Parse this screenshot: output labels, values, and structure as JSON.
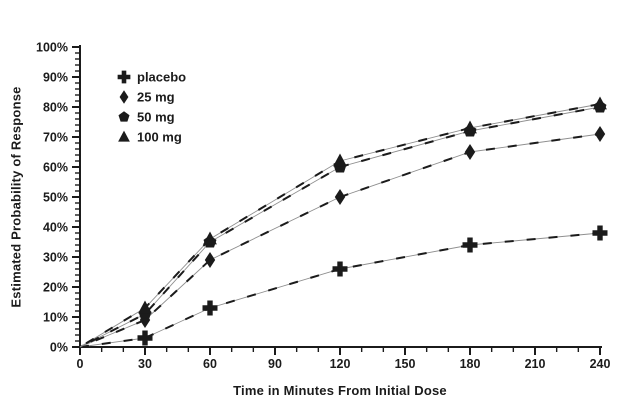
{
  "figure": {
    "background": "#ffffff",
    "ink_color": "#1b1b1b",
    "line_shadow_color": "#8f8f8f"
  },
  "chart_data": {
    "type": "line",
    "title": "",
    "xlabel": "Time in Minutes From Initial Dose",
    "ylabel": "Estimated Probability of Response",
    "x": [
      0,
      30,
      60,
      120,
      180,
      240
    ],
    "series": [
      {
        "name": "placebo",
        "marker": "plus-icon",
        "values": [
          0,
          3,
          13,
          26,
          34,
          38
        ]
      },
      {
        "name": "25 mg",
        "marker": "diamond-icon",
        "values": [
          0,
          9,
          29,
          50,
          65,
          71
        ]
      },
      {
        "name": "50 mg",
        "marker": "pentagon-icon",
        "values": [
          0,
          11,
          35,
          60,
          72,
          80
        ]
      },
      {
        "name": "100 mg",
        "marker": "triangle-icon",
        "values": [
          0,
          13,
          36,
          62,
          73,
          81
        ]
      }
    ],
    "xlim": [
      0,
      240
    ],
    "ylim": [
      0,
      100
    ],
    "x_major_ticks": [
      0,
      30,
      60,
      90,
      120,
      150,
      180,
      210,
      240
    ],
    "x_minor_step": 10,
    "y_major_step": 10,
    "y_minor_step": 2,
    "y_tick_suffix": "%",
    "grid": false,
    "line_style": "dashed",
    "legend_position": "upper-left-inside",
    "legend_items": [
      "placebo",
      "25 mg",
      "50 mg",
      "100 mg"
    ]
  }
}
